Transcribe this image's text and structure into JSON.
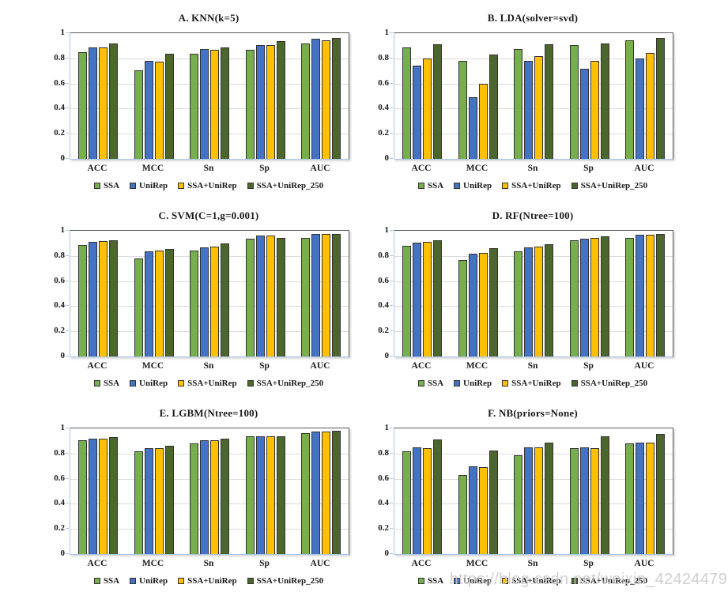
{
  "page": {
    "background": "#ffffff"
  },
  "watermark": {
    "text": "https://blog.csdn.net/weixin_42424479",
    "color": "#c8c8c8"
  },
  "colors": {
    "series": [
      "#77AE4E",
      "#4472C4",
      "#FFC000",
      "#4C672B"
    ],
    "bar_border": "#333333",
    "grid": "#DCDCDC",
    "frame": "#595959",
    "axis_blue": "#A9C7E7",
    "text": "#1A1A1A"
  },
  "legend": {
    "labels": [
      "SSA",
      "UniRep",
      "SSA+UniRep",
      "SSA+UniRep_250"
    ]
  },
  "chart_data": [
    {
      "type": "bar",
      "title": "A. KNN(k=5)",
      "categories": [
        "ACC",
        "MCC",
        "Sn",
        "Sp",
        "AUC"
      ],
      "series": [
        {
          "name": "SSA",
          "values": [
            0.85,
            0.705,
            0.835,
            0.87,
            0.92
          ]
        },
        {
          "name": "UniRep",
          "values": [
            0.89,
            0.78,
            0.875,
            0.905,
            0.955
          ]
        },
        {
          "name": "SSA+UniRep",
          "values": [
            0.885,
            0.775,
            0.87,
            0.905,
            0.945
          ]
        },
        {
          "name": "SSA+UniRep_250",
          "values": [
            0.92,
            0.835,
            0.89,
            0.94,
            0.96
          ]
        }
      ],
      "ylim": [
        0,
        1
      ],
      "yticks": [
        1,
        0.8,
        0.6,
        0.4,
        0.2,
        0
      ],
      "grid": true,
      "legend_position": "bottom"
    },
    {
      "type": "bar",
      "title": "B. LDA(solver=svd)",
      "categories": [
        "ACC",
        "MCC",
        "Sn",
        "Sp",
        "AUC"
      ],
      "series": [
        {
          "name": "SSA",
          "values": [
            0.89,
            0.78,
            0.875,
            0.905,
            0.945
          ]
        },
        {
          "name": "UniRep",
          "values": [
            0.745,
            0.49,
            0.78,
            0.715,
            0.8
          ]
        },
        {
          "name": "SSA+UniRep",
          "values": [
            0.8,
            0.6,
            0.82,
            0.78,
            0.84
          ]
        },
        {
          "name": "SSA+UniRep_250",
          "values": [
            0.915,
            0.83,
            0.91,
            0.92,
            0.965
          ]
        }
      ],
      "ylim": [
        0,
        1
      ],
      "yticks": [
        1,
        0.8,
        0.6,
        0.4,
        0.2,
        0
      ],
      "grid": true,
      "legend_position": "bottom"
    },
    {
      "type": "bar",
      "title": "C. SVM(C=1,g=0.001)",
      "categories": [
        "ACC",
        "MCC",
        "Sn",
        "Sp",
        "AUC"
      ],
      "series": [
        {
          "name": "SSA",
          "values": [
            0.885,
            0.78,
            0.84,
            0.935,
            0.945
          ]
        },
        {
          "name": "UniRep",
          "values": [
            0.915,
            0.835,
            0.865,
            0.965,
            0.975
          ]
        },
        {
          "name": "SSA+UniRep",
          "values": [
            0.92,
            0.845,
            0.875,
            0.965,
            0.975
          ]
        },
        {
          "name": "SSA+UniRep_250",
          "values": [
            0.925,
            0.855,
            0.9,
            0.945,
            0.975
          ]
        }
      ],
      "ylim": [
        0,
        1
      ],
      "yticks": [
        1,
        0.8,
        0.6,
        0.4,
        0.2,
        0
      ],
      "grid": true,
      "legend_position": "bottom"
    },
    {
      "type": "bar",
      "title": "D. RF(Ntree=100)",
      "categories": [
        "ACC",
        "MCC",
        "Sn",
        "Sp",
        "AUC"
      ],
      "series": [
        {
          "name": "SSA",
          "values": [
            0.88,
            0.77,
            0.835,
            0.925,
            0.945
          ]
        },
        {
          "name": "UniRep",
          "values": [
            0.905,
            0.815,
            0.87,
            0.935,
            0.97
          ]
        },
        {
          "name": "SSA+UniRep",
          "values": [
            0.91,
            0.825,
            0.875,
            0.945,
            0.97
          ]
        },
        {
          "name": "SSA+UniRep_250",
          "values": [
            0.925,
            0.86,
            0.895,
            0.955,
            0.975
          ]
        }
      ],
      "ylim": [
        0,
        1
      ],
      "yticks": [
        1,
        0.8,
        0.6,
        0.4,
        0.2,
        0
      ],
      "grid": true,
      "legend_position": "bottom"
    },
    {
      "type": "bar",
      "title": "E. LGBM(Ntree=100)",
      "categories": [
        "ACC",
        "MCC",
        "Sn",
        "Sp",
        "AUC"
      ],
      "series": [
        {
          "name": "SSA",
          "values": [
            0.905,
            0.82,
            0.88,
            0.935,
            0.96
          ]
        },
        {
          "name": "UniRep",
          "values": [
            0.92,
            0.84,
            0.905,
            0.935,
            0.975
          ]
        },
        {
          "name": "SSA+UniRep",
          "values": [
            0.92,
            0.845,
            0.905,
            0.935,
            0.975
          ]
        },
        {
          "name": "SSA+UniRep_250",
          "values": [
            0.93,
            0.86,
            0.92,
            0.94,
            0.98
          ]
        }
      ],
      "ylim": [
        0,
        1
      ],
      "yticks": [
        1,
        0.8,
        0.6,
        0.4,
        0.2,
        0
      ],
      "grid": true,
      "legend_position": "bottom"
    },
    {
      "type": "bar",
      "title": "F. NB(priors=None)",
      "categories": [
        "ACC",
        "MCC",
        "Sn",
        "Sp",
        "AUC"
      ],
      "series": [
        {
          "name": "SSA",
          "values": [
            0.815,
            0.63,
            0.785,
            0.84,
            0.88
          ]
        },
        {
          "name": "UniRep",
          "values": [
            0.85,
            0.7,
            0.85,
            0.85,
            0.885
          ]
        },
        {
          "name": "SSA+UniRep",
          "values": [
            0.845,
            0.695,
            0.85,
            0.845,
            0.885
          ]
        },
        {
          "name": "SSA+UniRep_250",
          "values": [
            0.91,
            0.825,
            0.885,
            0.935,
            0.955
          ]
        }
      ],
      "ylim": [
        0,
        1
      ],
      "yticks": [
        1,
        0.8,
        0.6,
        0.4,
        0.2,
        0
      ],
      "grid": true,
      "legend_position": "bottom"
    }
  ]
}
